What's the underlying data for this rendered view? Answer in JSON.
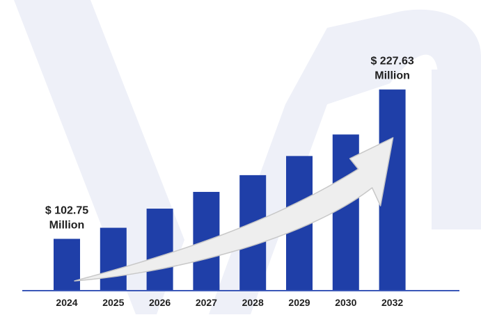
{
  "colors": {
    "bar": "#1f3fa8",
    "axis": "#3a57b8",
    "watermark": "#eef0f8",
    "arrow_fill": "#eeeeee",
    "arrow_stroke": "#c8c8c8",
    "text": "#1f1f1f"
  },
  "chart_data": {
    "type": "bar",
    "title": "",
    "xlabel": "",
    "ylabel": "",
    "categories": [
      "2024",
      "2025",
      "2026",
      "2027",
      "2028",
      "2029",
      "2030",
      "2032"
    ],
    "values": [
      102.75,
      112,
      128,
      142,
      156,
      172,
      190,
      227.63
    ],
    "ylim": [
      60,
      245
    ],
    "grid": false,
    "legend": "none",
    "annotations": [
      {
        "index": 0,
        "line1": "$ 102.75",
        "line2": "Million"
      },
      {
        "index": 7,
        "line1": "$ 227.63",
        "line2": "Million"
      }
    ],
    "trend_arrow": {
      "from_index": 0,
      "to_index": 7,
      "shape": "curved-up-arrow"
    }
  }
}
